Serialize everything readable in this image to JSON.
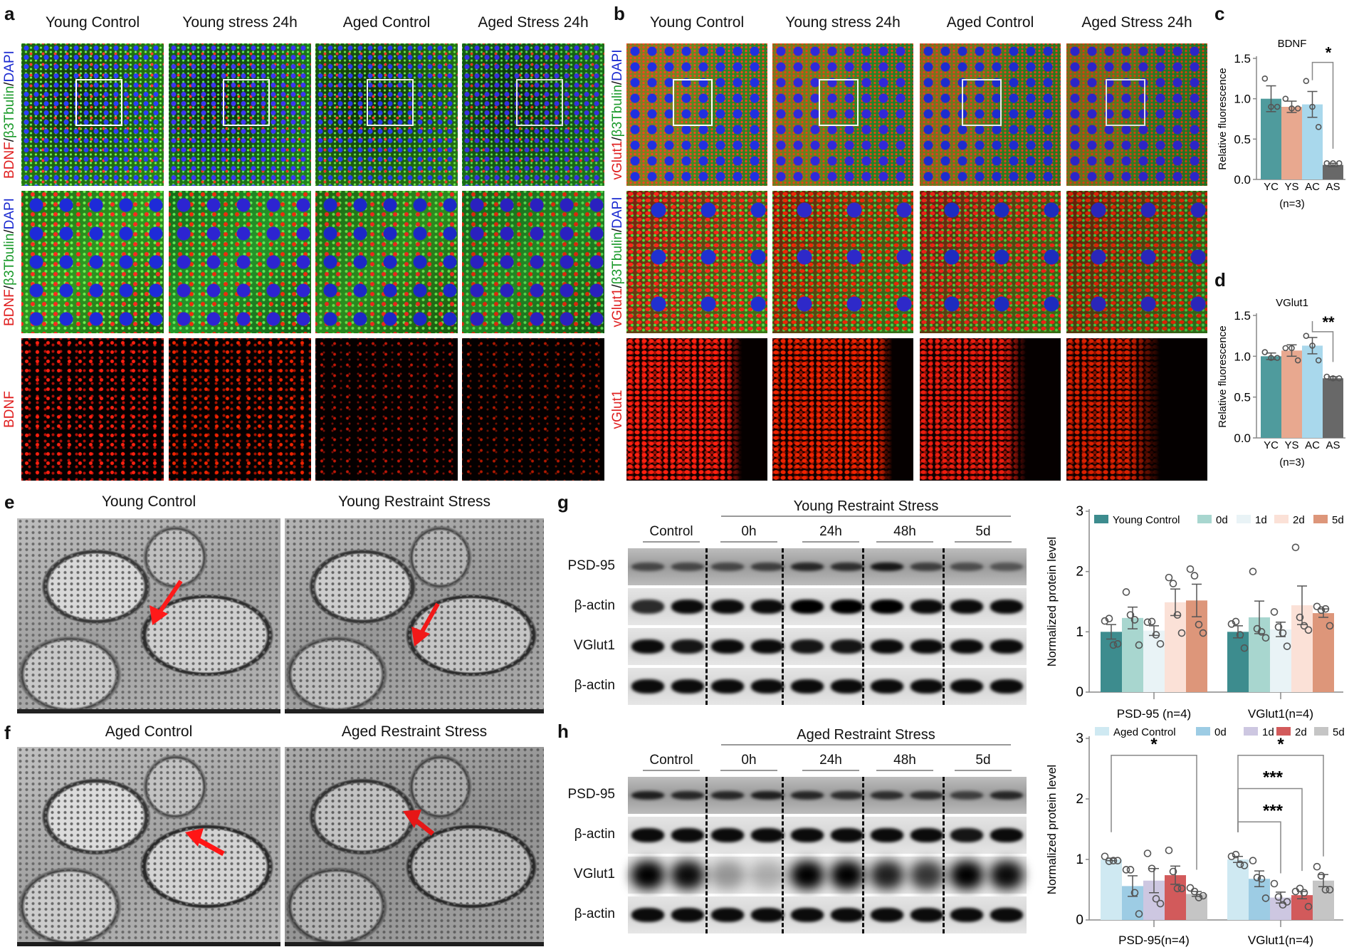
{
  "panel_a": {
    "label": "a",
    "columns": [
      "Young Control",
      "Young stress 24h",
      "Aged Control",
      "Aged Stress 24h"
    ],
    "row_labels": [
      [
        {
          "text": "BDNF",
          "color": "#e02020"
        },
        {
          "text": "/",
          "color": "#111111"
        },
        {
          "text": "β3Tbulin",
          "color": "#1a9a2a"
        },
        {
          "text": "/",
          "color": "#111111"
        },
        {
          "text": "DAPI",
          "color": "#1a2ad0"
        }
      ],
      [
        {
          "text": "BDNF",
          "color": "#e02020"
        },
        {
          "text": "/",
          "color": "#111111"
        },
        {
          "text": "β3Tbulin",
          "color": "#1a9a2a"
        },
        {
          "text": "/",
          "color": "#111111"
        },
        {
          "text": "DAPI",
          "color": "#1a2ad0"
        }
      ],
      [
        {
          "text": "BDNF",
          "color": "#e02020"
        }
      ]
    ]
  },
  "panel_b": {
    "label": "b",
    "columns": [
      "Young Control",
      "Young stress 24h",
      "Aged Control",
      "Aged Stress 24h"
    ],
    "row_labels": [
      [
        {
          "text": "vGlut1",
          "color": "#e02020"
        },
        {
          "text": "/",
          "color": "#111111"
        },
        {
          "text": "β3Tbulin",
          "color": "#1a9a2a"
        },
        {
          "text": "/",
          "color": "#111111"
        },
        {
          "text": "DAPI",
          "color": "#1a2ad0"
        }
      ],
      [
        {
          "text": "vGlut1",
          "color": "#e02020"
        },
        {
          "text": "/",
          "color": "#111111"
        },
        {
          "text": "β3Tbulin",
          "color": "#1a9a2a"
        },
        {
          "text": "/",
          "color": "#111111"
        },
        {
          "text": "DAPI",
          "color": "#1a2ad0"
        }
      ],
      [
        {
          "text": "vGlut1",
          "color": "#e02020"
        }
      ]
    ]
  },
  "panel_e": {
    "label": "e",
    "titles": [
      "Young Control",
      "Young Restraint Stress"
    ]
  },
  "panel_f": {
    "label": "f",
    "titles": [
      "Aged Control",
      "Aged Restraint Stress"
    ]
  },
  "panel_g": {
    "label": "g",
    "header": "Young Restraint Stress",
    "groups": [
      "Control",
      "0h",
      "24h",
      "48h",
      "5d"
    ],
    "rows": [
      "PSD-95",
      "β-actin",
      "VGlut1",
      "β-actin"
    ]
  },
  "panel_h": {
    "label": "h",
    "header": "Aged Restraint Stress",
    "groups": [
      "Control",
      "0h",
      "24h",
      "48h",
      "5d"
    ],
    "rows": [
      "PSD-95",
      "β-actin",
      "VGlut1",
      "β-actin"
    ]
  },
  "chart_data": [
    {
      "panel": "c",
      "type": "bar",
      "title": "BDNF",
      "ylabel": "Relative fluorescence",
      "ylim": [
        0,
        1.5
      ],
      "yticks": [
        "0.0",
        "0.5",
        "1.0",
        "1.5"
      ],
      "categories": [
        "YC",
        "YS",
        "AC",
        "AS"
      ],
      "group_label": "(n=3)",
      "colors": [
        "#4f9b9d",
        "#e8a88f",
        "#a9d8ec",
        "#686868"
      ],
      "values": [
        1.0,
        0.9,
        0.93,
        0.18
      ],
      "errors": [
        0.16,
        0.07,
        0.16,
        0.02
      ],
      "points": [
        [
          1.25,
          0.9,
          0.9
        ],
        [
          1.0,
          0.88,
          0.88
        ],
        [
          1.22,
          0.9,
          0.65
        ],
        [
          0.2,
          0.2,
          0.2
        ]
      ],
      "significance": [
        {
          "from": 2,
          "to": 3,
          "level": 1.45,
          "label": "*"
        }
      ]
    },
    {
      "panel": "d",
      "type": "bar",
      "title": "VGlut1",
      "ylabel": "Relative fluorescence",
      "ylim": [
        0,
        1.5
      ],
      "yticks": [
        "0.0",
        "0.5",
        "1.0",
        "1.5"
      ],
      "categories": [
        "YC",
        "YS",
        "AC",
        "AS"
      ],
      "group_label": "(n=3)",
      "colors": [
        "#4f9b9d",
        "#e8a88f",
        "#a9d8ec",
        "#686868"
      ],
      "values": [
        1.0,
        1.07,
        1.13,
        0.73
      ],
      "errors": [
        0.04,
        0.07,
        0.1,
        0.02
      ],
      "points": [
        [
          1.05,
          0.98,
          0.98
        ],
        [
          1.1,
          1.1,
          0.95
        ],
        [
          1.25,
          1.13,
          0.95
        ],
        [
          0.75,
          0.73,
          0.73
        ]
      ],
      "significance": [
        {
          "from": 2,
          "to": 3,
          "level": 1.3,
          "label": "**"
        }
      ]
    },
    {
      "panel": "g",
      "type": "bar",
      "ylabel": "Normalized protein level",
      "ylim": [
        0,
        3
      ],
      "yticks": [
        "0",
        "1",
        "2",
        "3"
      ],
      "categories": [
        "PSD-95 (n=4)",
        "VGlut1(n=4)"
      ],
      "legend_position": "top",
      "series": [
        {
          "name": "Young Control",
          "color": "#3d8c8e",
          "values": [
            1.0,
            1.0
          ],
          "errors": [
            0.12,
            0.1
          ],
          "points": [
            [
              1.18,
              1.22,
              0.78,
              0.8
            ],
            [
              1.13,
              1.17,
              0.95,
              0.73
            ]
          ]
        },
        {
          "name": "0d",
          "color": "#a8d6cf",
          "values": [
            1.23,
            1.24
          ],
          "errors": [
            0.18,
            0.27
          ],
          "points": [
            [
              1.66,
              1.28,
              1.2,
              0.78
            ],
            [
              2.0,
              1.05,
              1.0,
              0.9
            ]
          ]
        },
        {
          "name": "1d",
          "color": "#e9f3f6",
          "values": [
            1.02,
            1.04
          ],
          "errors": [
            0.08,
            0.12
          ],
          "points": [
            [
              1.16,
              1.17,
              0.95,
              0.8
            ],
            [
              1.33,
              1.08,
              0.98,
              0.76
            ]
          ]
        },
        {
          "name": "2d",
          "color": "#fbe1d7",
          "values": [
            1.49,
            1.44
          ],
          "errors": [
            0.22,
            0.32
          ],
          "points": [
            [
              1.9,
              1.8,
              1.28,
              0.98
            ],
            [
              2.4,
              1.24,
              1.1,
              1.03
            ]
          ]
        },
        {
          "name": "5d",
          "color": "#dd967a",
          "values": [
            1.52,
            1.31
          ],
          "errors": [
            0.27,
            0.07
          ],
          "points": [
            [
              2.04,
              1.93,
              1.12,
              0.98
            ],
            [
              1.42,
              1.36,
              1.38,
              1.1
            ]
          ]
        }
      ],
      "significance": []
    },
    {
      "panel": "h",
      "type": "bar",
      "ylabel": "Normalized protein level",
      "ylim": [
        0,
        3
      ],
      "yticks": [
        "0",
        "1",
        "2",
        "3"
      ],
      "categories": [
        "PSD-95(n=4)",
        "VGlut1(n=4)"
      ],
      "legend_position": "top",
      "series": [
        {
          "name": "Aged Control",
          "color": "#cfe9f2",
          "values": [
            1.0,
            1.0
          ],
          "errors": [
            0.02,
            0.05
          ],
          "points": [
            [
              1.05,
              0.97,
              0.98,
              0.98
            ],
            [
              1.05,
              1.08,
              0.92,
              0.9
            ]
          ]
        },
        {
          "name": "0d",
          "color": "#9dcce4",
          "values": [
            0.56,
            0.68
          ],
          "errors": [
            0.17,
            0.13
          ],
          "points": [
            [
              0.83,
              0.83,
              0.45,
              0.1
            ],
            [
              0.98,
              0.7,
              0.68,
              0.36
            ]
          ]
        },
        {
          "name": "1d",
          "color": "#cdc7e1",
          "values": [
            0.65,
            0.37
          ],
          "errors": [
            0.2,
            0.09
          ],
          "points": [
            [
              1.1,
              0.85,
              0.35,
              0.27
            ],
            [
              0.6,
              0.38,
              0.25,
              0.3
            ]
          ]
        },
        {
          "name": "2d",
          "color": "#d25a5b",
          "values": [
            0.74,
            0.41
          ],
          "errors": [
            0.15,
            0.06
          ],
          "points": [
            [
              1.15,
              0.8,
              0.52,
              0.52
            ],
            [
              0.47,
              0.52,
              0.45,
              0.22
            ]
          ]
        },
        {
          "name": "5d",
          "color": "#c5c5c5",
          "values": [
            0.43,
            0.65
          ],
          "errors": [
            0.04,
            0.1
          ],
          "points": [
            [
              0.53,
              0.47,
              0.37,
              0.4
            ],
            [
              0.88,
              0.73,
              0.5,
              0.5
            ]
          ]
        }
      ],
      "significance": [
        {
          "group": 0,
          "from": 0,
          "to": 4,
          "level": 2.72,
          "label": "*"
        },
        {
          "group": 1,
          "from": 0,
          "to": 4,
          "level": 2.72,
          "label": "*"
        },
        {
          "group": 1,
          "from": 0,
          "to": 3,
          "level": 2.17,
          "label": "***"
        },
        {
          "group": 1,
          "from": 0,
          "to": 2,
          "level": 1.62,
          "label": "***"
        }
      ]
    }
  ]
}
